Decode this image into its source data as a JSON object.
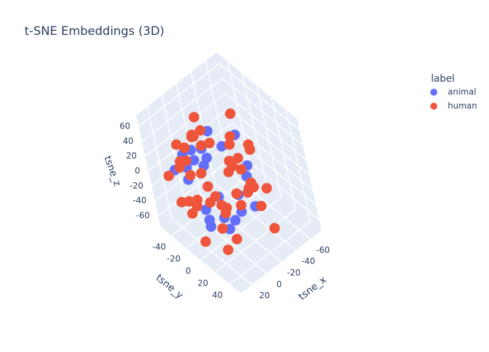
{
  "chart_data": {
    "type": "scatter3d",
    "title": "t-SNE Embeddings (3D)",
    "x_label": "tsne_x",
    "y_label": "tsne_y",
    "z_label": "tsne_z",
    "legend_title": "label",
    "legend": "top-right",
    "xlim": [
      -75,
      35
    ],
    "ylim": [
      -55,
      55
    ],
    "zlim": [
      -75,
      75
    ],
    "xticks": [
      -60,
      -40,
      -20,
      0,
      20
    ],
    "yticks": [
      -40,
      -20,
      0,
      20,
      40
    ],
    "zticks": [
      -60,
      -40,
      -20,
      0,
      20,
      40,
      60
    ],
    "series": [
      {
        "name": "animal",
        "color": "#636efa",
        "x": [
          -12,
          5,
          -30,
          18,
          -8,
          22,
          -40,
          10,
          -5,
          30,
          -22,
          0,
          14,
          -35,
          8,
          -18,
          25,
          -2,
          12,
          -28,
          3,
          -15,
          20,
          -45,
          6
        ],
        "y": [
          -20,
          10,
          -35,
          5,
          25,
          -10,
          0,
          -28,
          15,
          20,
          -5,
          -40,
          30,
          12,
          -15,
          35,
          -25,
          2,
          -8,
          22,
          40,
          -30,
          8,
          -12,
          -2
        ],
        "z": [
          10,
          -5,
          20,
          -30,
          0,
          15,
          -20,
          25,
          -40,
          5,
          30,
          -10,
          -25,
          8,
          40,
          -15,
          18,
          -45,
          35,
          -8,
          -2,
          12,
          -35,
          22,
          28
        ]
      },
      {
        "name": "human",
        "color": "#EF553B",
        "x": [
          -20,
          15,
          -5,
          30,
          -35,
          8,
          -12,
          22,
          -42,
          0,
          18,
          -28,
          5,
          -50,
          25,
          -8,
          12,
          -18,
          35,
          -3,
          -25,
          10,
          -38,
          20,
          -15,
          2,
          28,
          -32,
          14,
          -10,
          -45,
          6,
          24,
          -22,
          -6,
          32,
          -14,
          16,
          -30,
          4,
          -40,
          26,
          -2,
          11,
          -26,
          19,
          -48,
          7,
          -17,
          33
        ],
        "y": [
          5,
          -15,
          30,
          -30,
          12,
          40,
          -5,
          20,
          -20,
          -38,
          8,
          25,
          -10,
          0,
          -25,
          45,
          15,
          -35,
          3,
          -12,
          35,
          -22,
          18,
          28,
          -42,
          10,
          -8,
          -2,
          38,
          -18,
          22,
          -30,
          32,
          6,
          -45,
          -6,
          14,
          -26,
          42,
          -14,
          -8,
          24,
          2,
          -33,
          16,
          36,
          -16,
          -24,
          26,
          12
        ],
        "z": [
          20,
          -30,
          45,
          10,
          -15,
          55,
          -45,
          30,
          5,
          -55,
          35,
          -5,
          60,
          15,
          -25,
          25,
          -38,
          48,
          -10,
          40,
          -20,
          2,
          32,
          -50,
          18,
          65,
          -8,
          38,
          -32,
          50,
          -22,
          12,
          28,
          -40,
          8,
          42,
          -12,
          22,
          -48,
          58,
          -2,
          15,
          -28,
          35,
          -18,
          5,
          45,
          -35,
          28,
          -42
        ]
      }
    ]
  }
}
